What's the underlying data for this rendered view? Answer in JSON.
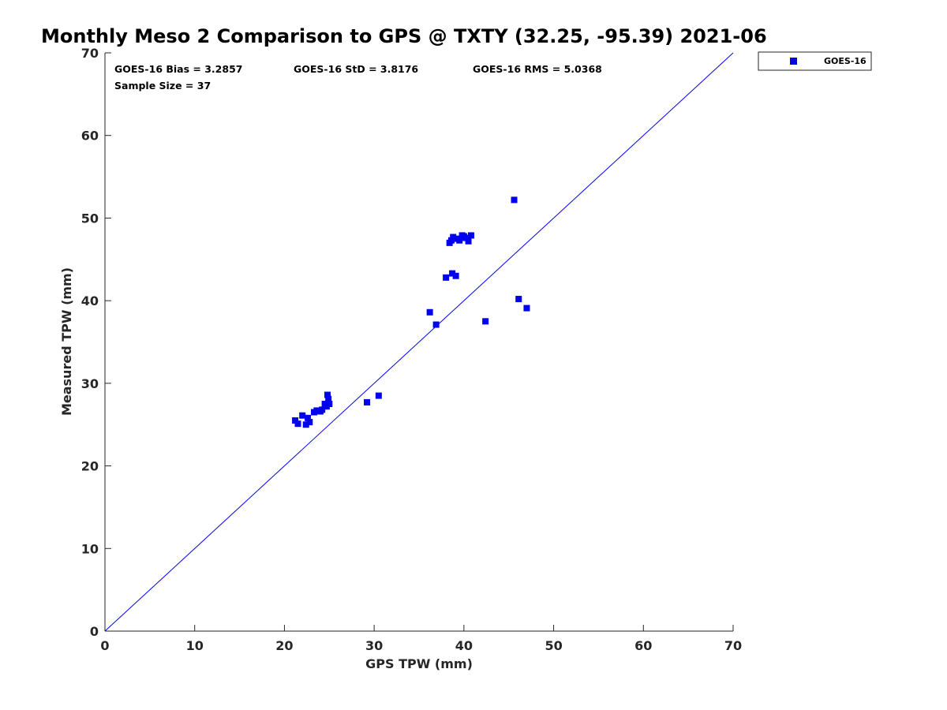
{
  "chart_data": {
    "type": "scatter",
    "title": "Monthly Meso 2 Comparison to GPS @ TXTY (32.25, -95.39) 2021-06",
    "xlabel": "GPS TPW (mm)",
    "ylabel": "Measured TPW (mm)",
    "xlim": [
      0,
      70
    ],
    "ylim": [
      0,
      70
    ],
    "x_ticks": [
      "0",
      "10",
      "20",
      "30",
      "40",
      "50",
      "60",
      "70"
    ],
    "y_ticks": [
      "0",
      "10",
      "20",
      "30",
      "40",
      "50",
      "60",
      "70"
    ],
    "grid": false,
    "legend_position": "outside-top-right",
    "reference_line": {
      "x": [
        0,
        70
      ],
      "y": [
        0,
        70
      ],
      "color": "#0000ff"
    },
    "stats": {
      "bias": "GOES-16 Bias = 3.2857",
      "std": "GOES-16 StD = 3.8176",
      "rms": "GOES-16 RMS = 5.0368",
      "sample_size": "Sample Size = 37"
    },
    "series": [
      {
        "name": "GOES-16",
        "color": "#0000ee",
        "marker": "square",
        "points": [
          [
            21.2,
            25.5
          ],
          [
            21.5,
            25.1
          ],
          [
            22.0,
            26.1
          ],
          [
            22.4,
            25.0
          ],
          [
            22.6,
            25.8
          ],
          [
            22.8,
            25.3
          ],
          [
            23.3,
            26.5
          ],
          [
            23.6,
            26.7
          ],
          [
            24.0,
            26.6
          ],
          [
            24.2,
            26.8
          ],
          [
            24.5,
            27.5
          ],
          [
            24.7,
            27.2
          ],
          [
            24.8,
            28.6
          ],
          [
            24.9,
            28.1
          ],
          [
            25.0,
            27.5
          ],
          [
            29.2,
            27.7
          ],
          [
            30.5,
            28.5
          ],
          [
            36.2,
            38.6
          ],
          [
            36.9,
            37.1
          ],
          [
            38.0,
            42.8
          ],
          [
            38.4,
            47.0
          ],
          [
            38.7,
            43.3
          ],
          [
            38.8,
            47.7
          ],
          [
            39.1,
            43.0
          ],
          [
            39.5,
            47.3
          ],
          [
            39.8,
            47.9
          ],
          [
            40.2,
            47.6
          ],
          [
            40.5,
            47.2
          ],
          [
            40.8,
            47.9
          ],
          [
            42.4,
            37.5
          ],
          [
            45.6,
            52.2
          ],
          [
            46.1,
            40.2
          ],
          [
            47.0,
            39.1
          ],
          [
            39.3,
            47.5
          ],
          [
            40.0,
            47.8
          ],
          [
            38.6,
            47.3
          ],
          [
            24.6,
            27.3
          ]
        ]
      }
    ]
  }
}
